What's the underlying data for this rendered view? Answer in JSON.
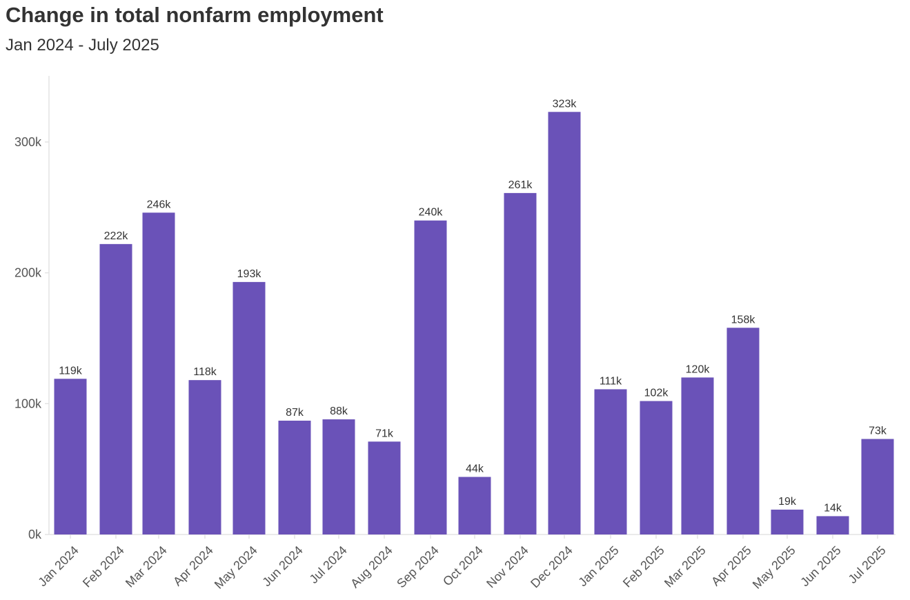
{
  "chart_data": {
    "type": "bar",
    "title": "Change in total nonfarm employment",
    "subtitle": "Jan 2024 - July 2025",
    "xlabel": "",
    "ylabel": "",
    "categories": [
      "Jan 2024",
      "Feb 2024",
      "Mar 2024",
      "Apr 2024",
      "May 2024",
      "Jun 2024",
      "Jul 2024",
      "Aug 2024",
      "Sep 2024",
      "Oct 2024",
      "Nov 2024",
      "Dec 2024",
      "Jan 2025",
      "Feb 2025",
      "Mar 2025",
      "Apr 2025",
      "May 2025",
      "Jun 2025",
      "Jul 2025"
    ],
    "values": [
      119,
      222,
      246,
      118,
      193,
      87,
      88,
      71,
      240,
      44,
      261,
      323,
      111,
      102,
      120,
      158,
      19,
      14,
      73
    ],
    "value_labels": [
      "119k",
      "222k",
      "246k",
      "118k",
      "193k",
      "87k",
      "88k",
      "71k",
      "240k",
      "44k",
      "261k",
      "323k",
      "111k",
      "102k",
      "120k",
      "158k",
      "19k",
      "14k",
      "73k"
    ],
    "unit": "thousands",
    "y_ticks": [
      0,
      100,
      200,
      300
    ],
    "y_tick_labels": [
      "0k",
      "100k",
      "200k",
      "300k"
    ],
    "ylim": [
      0,
      350
    ],
    "grid": false,
    "legend": "none",
    "colors": {
      "bar": "#6a52b8",
      "axis": "#e3e3e3",
      "tick_text": "#555555",
      "label_text": "#333333",
      "title_text": "#333333"
    }
  }
}
